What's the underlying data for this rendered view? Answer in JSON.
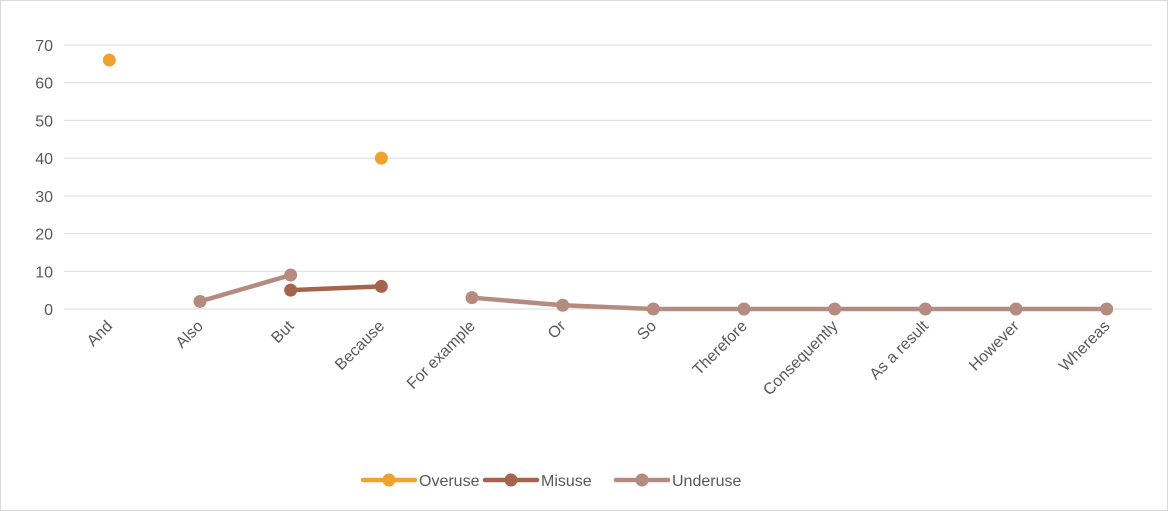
{
  "chart_data": {
    "type": "line",
    "categories": [
      "And",
      "Also",
      "But",
      "Because",
      "For example",
      "Or",
      "So",
      "Therefore",
      "Consequently",
      "As a result",
      "However",
      "Whereas"
    ],
    "series": [
      {
        "name": "Overuse",
        "color": "#f0a22e",
        "values": [
          66,
          null,
          null,
          40,
          null,
          null,
          null,
          null,
          null,
          null,
          null,
          null
        ]
      },
      {
        "name": "Misuse",
        "color": "#a5644e",
        "values": [
          null,
          null,
          5,
          6,
          null,
          null,
          null,
          null,
          null,
          null,
          null,
          null
        ]
      },
      {
        "name": "Underuse",
        "color": "#b58b80",
        "values": [
          null,
          2,
          9,
          null,
          3,
          1,
          0,
          0,
          0,
          0,
          0,
          0
        ]
      }
    ],
    "yticks": [
      0,
      10,
      20,
      30,
      40,
      50,
      60,
      70
    ],
    "ylim": [
      0,
      70
    ],
    "grid": true,
    "legend": "bottom",
    "title": "",
    "xlabel": "",
    "ylabel": ""
  }
}
